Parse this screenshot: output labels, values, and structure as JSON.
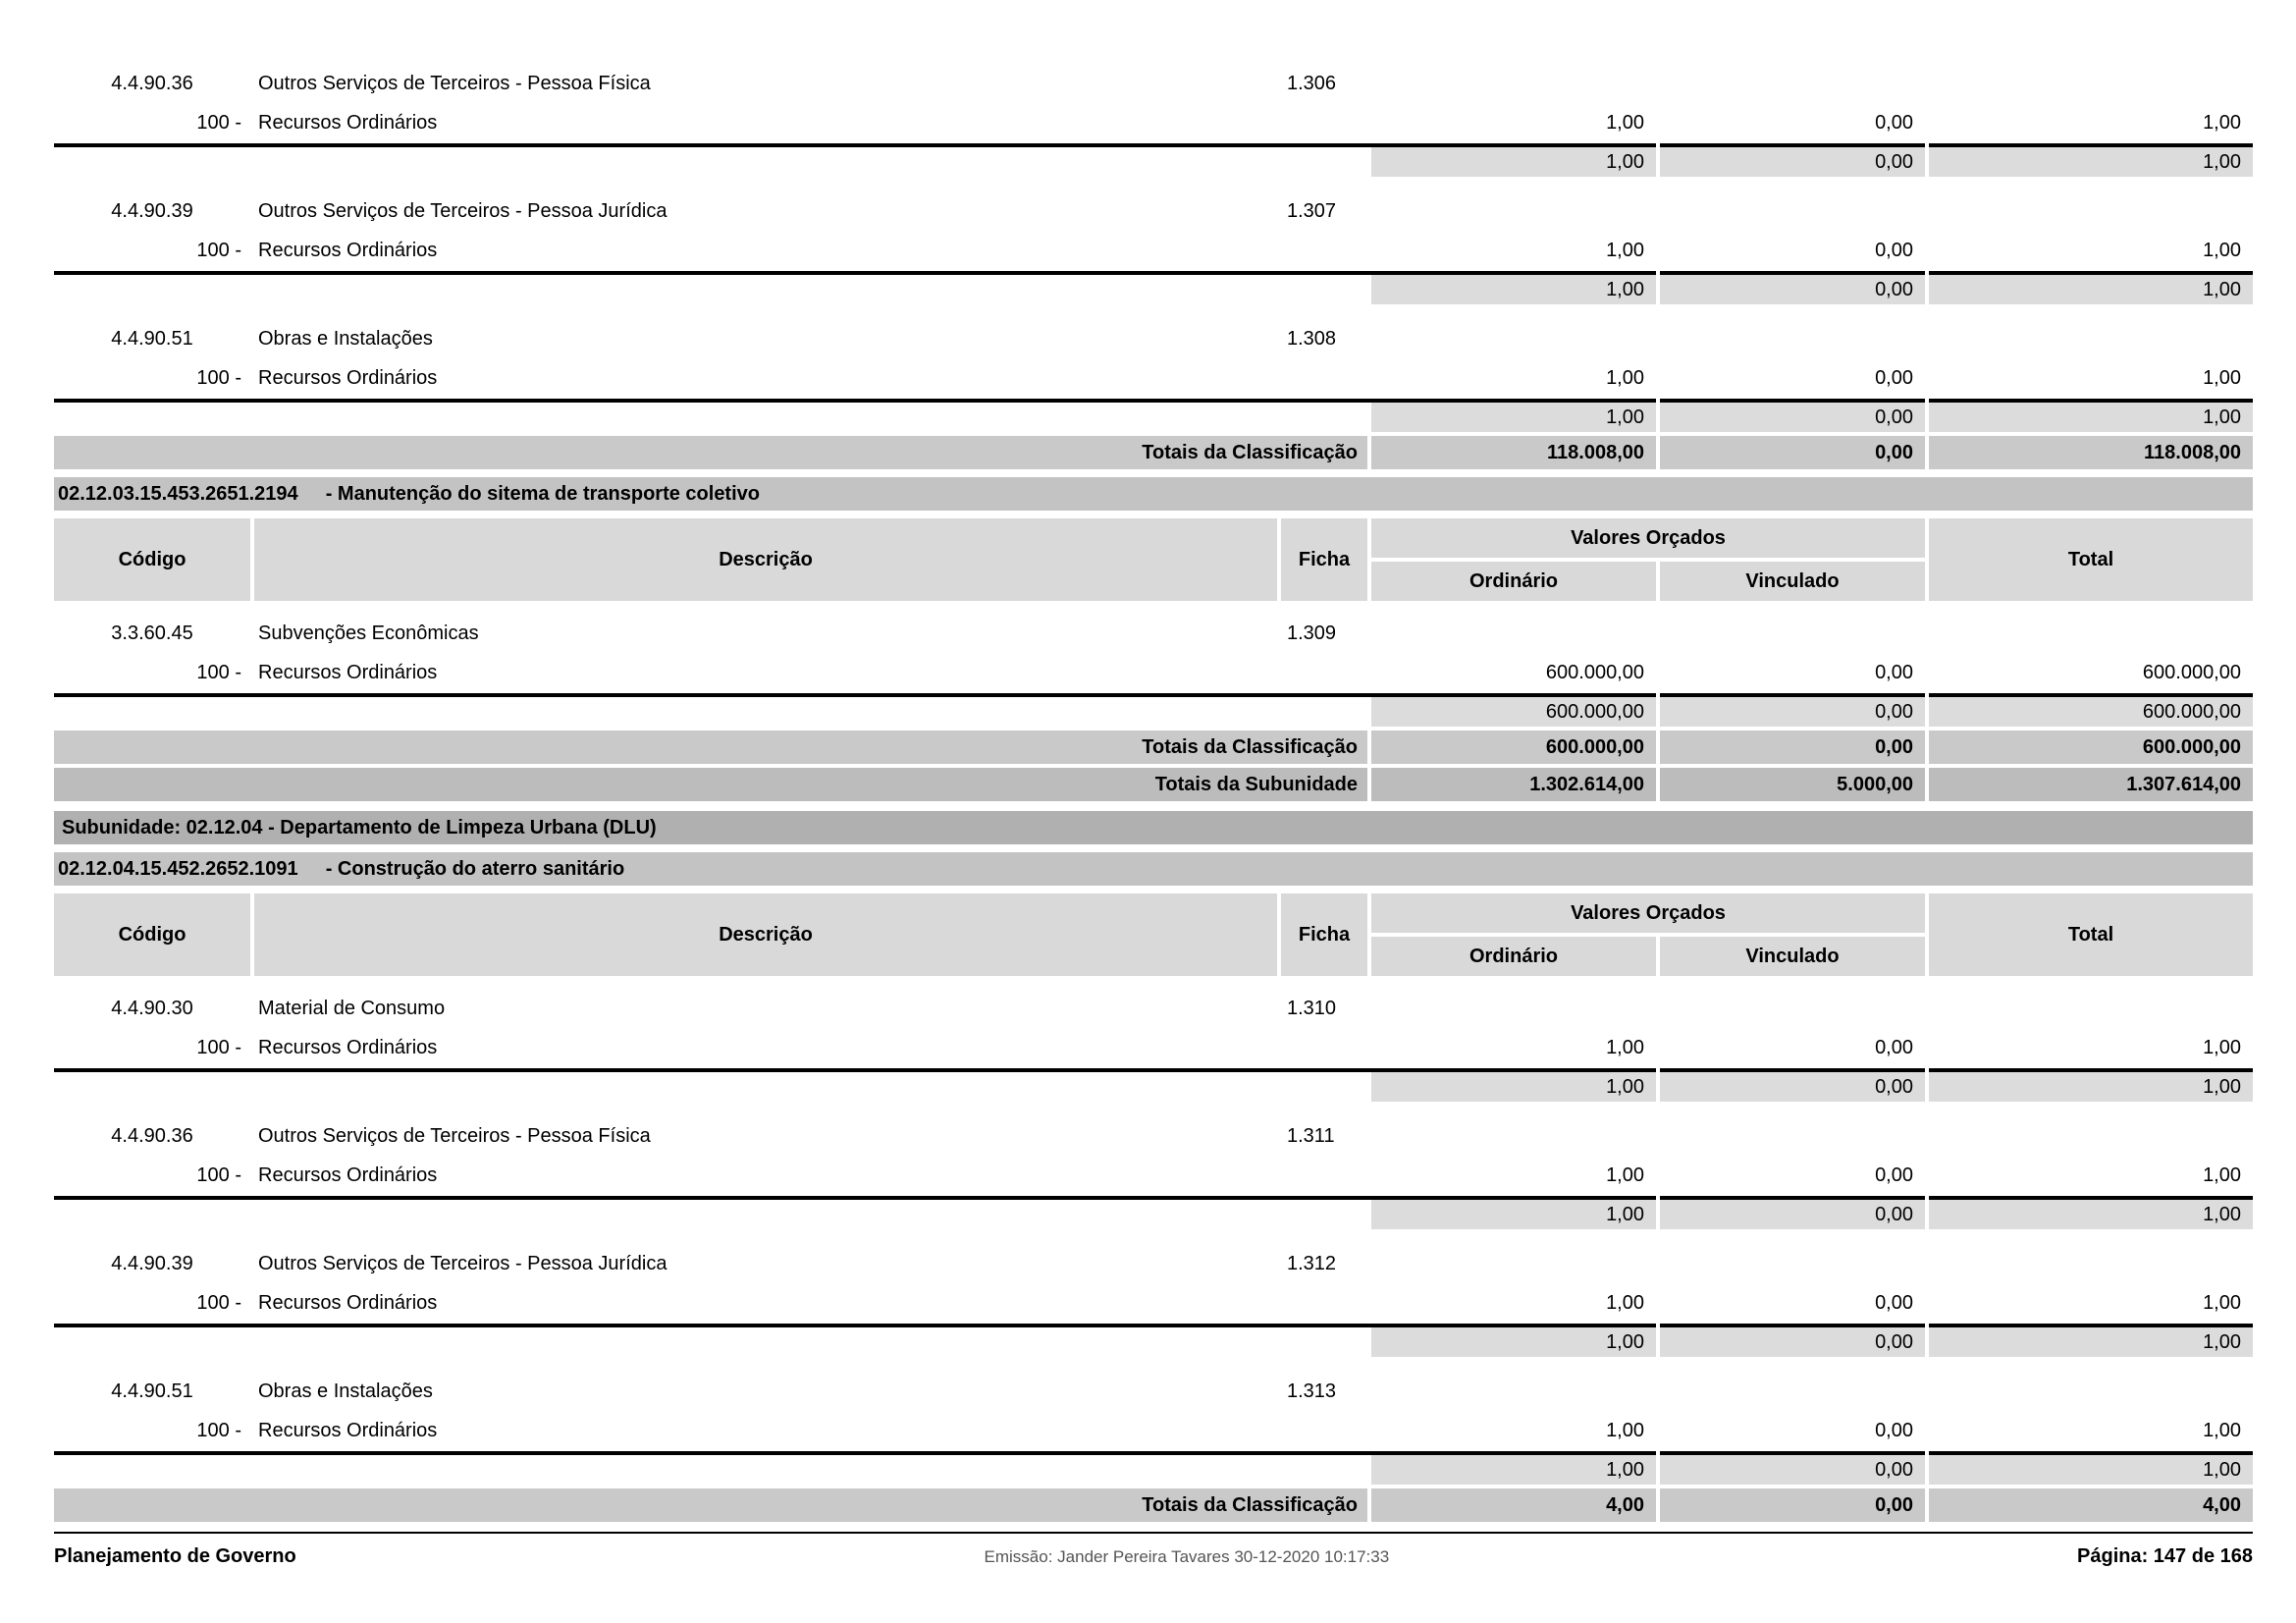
{
  "report": {
    "labels": {
      "codigo": "Código",
      "descricao": "Descrição",
      "ficha": "Ficha",
      "valores_orcados": "Valores Orçados",
      "ordinario": "Ordinário",
      "vinculado": "Vinculado",
      "total": "Total",
      "totais_classificacao": "Totais da Classificação",
      "totais_subunidade": "Totais da Subunidade"
    },
    "sections": [
      {
        "classifications": [
          {
            "code": "4.4.90.36",
            "description": "Outros Serviços de Terceiros - Pessoa Física",
            "ficha": "1.306",
            "resources": [
              {
                "code": "100 -",
                "name": "Recursos Ordinários",
                "ordinario": "1,00",
                "vinculado": "0,00",
                "total": "1,00"
              }
            ],
            "subtotal": {
              "ordinario": "1,00",
              "vinculado": "0,00",
              "total": "1,00"
            }
          },
          {
            "code": "4.4.90.39",
            "description": "Outros Serviços de Terceiros - Pessoa Jurídica",
            "ficha": "1.307",
            "resources": [
              {
                "code": "100 -",
                "name": "Recursos Ordinários",
                "ordinario": "1,00",
                "vinculado": "0,00",
                "total": "1,00"
              }
            ],
            "subtotal": {
              "ordinario": "1,00",
              "vinculado": "0,00",
              "total": "1,00"
            }
          },
          {
            "code": "4.4.90.51",
            "description": "Obras e Instalações",
            "ficha": "1.308",
            "resources": [
              {
                "code": "100 -",
                "name": "Recursos Ordinários",
                "ordinario": "1,00",
                "vinculado": "0,00",
                "total": "1,00"
              }
            ],
            "subtotal": {
              "ordinario": "1,00",
              "vinculado": "0,00",
              "total": "1,00"
            }
          }
        ],
        "totais_classificacao": {
          "ordinario": "118.008,00",
          "vinculado": "0,00",
          "total": "118.008,00"
        }
      },
      {
        "program": {
          "code": "02.12.03.15.453.2651.2194",
          "name": "- Manutenção do sitema de transporte coletivo"
        },
        "show_column_header": true,
        "classifications": [
          {
            "code": "3.3.60.45",
            "description": "Subvenções Econômicas",
            "ficha": "1.309",
            "resources": [
              {
                "code": "100 -",
                "name": "Recursos Ordinários",
                "ordinario": "600.000,00",
                "vinculado": "0,00",
                "total": "600.000,00"
              }
            ],
            "subtotal": {
              "ordinario": "600.000,00",
              "vinculado": "0,00",
              "total": "600.000,00"
            }
          }
        ],
        "totais_classificacao": {
          "ordinario": "600.000,00",
          "vinculado": "0,00",
          "total": "600.000,00"
        },
        "totais_subunidade": {
          "ordinario": "1.302.614,00",
          "vinculado": "5.000,00",
          "total": "1.307.614,00"
        }
      },
      {
        "subunidade": "Subunidade: 02.12.04 - Departamento de Limpeza Urbana (DLU)",
        "program": {
          "code": "02.12.04.15.452.2652.1091",
          "name": "- Construção do aterro sanitário"
        },
        "show_column_header": true,
        "classifications": [
          {
            "code": "4.4.90.30",
            "description": "Material de Consumo",
            "ficha": "1.310",
            "resources": [
              {
                "code": "100 -",
                "name": "Recursos Ordinários",
                "ordinario": "1,00",
                "vinculado": "0,00",
                "total": "1,00"
              }
            ],
            "subtotal": {
              "ordinario": "1,00",
              "vinculado": "0,00",
              "total": "1,00"
            }
          },
          {
            "code": "4.4.90.36",
            "description": "Outros Serviços de Terceiros - Pessoa Física",
            "ficha": "1.311",
            "resources": [
              {
                "code": "100 -",
                "name": "Recursos Ordinários",
                "ordinario": "1,00",
                "vinculado": "0,00",
                "total": "1,00"
              }
            ],
            "subtotal": {
              "ordinario": "1,00",
              "vinculado": "0,00",
              "total": "1,00"
            }
          },
          {
            "code": "4.4.90.39",
            "description": "Outros Serviços de Terceiros - Pessoa Jurídica",
            "ficha": "1.312",
            "resources": [
              {
                "code": "100 -",
                "name": "Recursos Ordinários",
                "ordinario": "1,00",
                "vinculado": "0,00",
                "total": "1,00"
              }
            ],
            "subtotal": {
              "ordinario": "1,00",
              "vinculado": "0,00",
              "total": "1,00"
            }
          },
          {
            "code": "4.4.90.51",
            "description": "Obras e Instalações",
            "ficha": "1.313",
            "resources": [
              {
                "code": "100 -",
                "name": "Recursos Ordinários",
                "ordinario": "1,00",
                "vinculado": "0,00",
                "total": "1,00"
              }
            ],
            "subtotal": {
              "ordinario": "1,00",
              "vinculado": "0,00",
              "total": "1,00"
            }
          }
        ],
        "totais_classificacao": {
          "ordinario": "4,00",
          "vinculado": "0,00",
          "total": "4,00"
        }
      }
    ],
    "footer": {
      "app_title": "Planejamento de Governo",
      "emission": "Emissão: Jander Pereira Tavares 30-12-2020 10:17:33",
      "page_info": "Página: 147 de 168"
    }
  }
}
